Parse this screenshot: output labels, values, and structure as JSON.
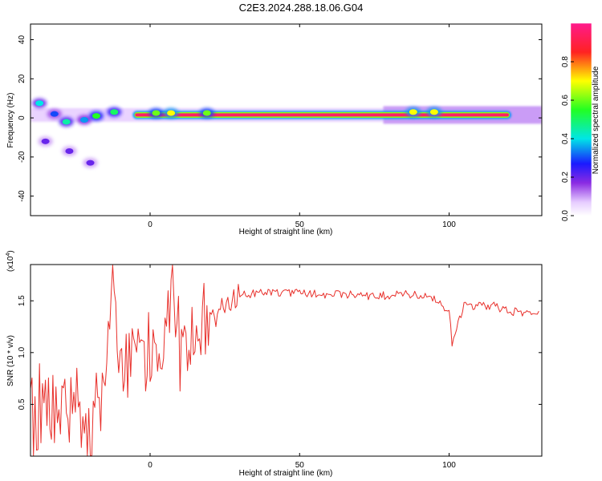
{
  "title": "C2E3.2024.288.18.06.G04",
  "colors": {
    "snr_line": "#e8302b",
    "frame": "#000000"
  },
  "chart_data": [
    {
      "type": "heatmap",
      "xlabel": "Height of straight line (km)",
      "ylabel": "Frequency (Hz)",
      "xlim": [
        -40,
        131
      ],
      "ylim": [
        -50,
        48
      ],
      "xticks": [
        0,
        50,
        100
      ],
      "yticks": [
        40,
        20,
        0,
        -20,
        -40
      ],
      "colorbar": {
        "label": "Normalized spectral amplitude",
        "range": [
          0,
          1
        ],
        "ticks": [
          0.0,
          0.2,
          0.4,
          0.6,
          0.8
        ],
        "tick_labels": [
          "0.0",
          "0.2",
          "0.4",
          "0.6",
          "0.8"
        ]
      },
      "dominant_band": {
        "frequency_hz": 1.5,
        "from_km": -5,
        "to_km": 120,
        "amplitude": 0.95
      },
      "features": [
        {
          "x": -37,
          "y": 7.5,
          "amplitude": 0.4
        },
        {
          "x": -32,
          "y": 2,
          "amplitude": 0.3
        },
        {
          "x": -28,
          "y": -2,
          "amplitude": 0.45
        },
        {
          "x": -22,
          "y": -1,
          "amplitude": 0.35
        },
        {
          "x": -18,
          "y": 1,
          "amplitude": 0.55
        },
        {
          "x": -12,
          "y": 3,
          "amplitude": 0.5
        },
        {
          "x": -35,
          "y": -12,
          "amplitude": 0.2
        },
        {
          "x": -27,
          "y": -17,
          "amplitude": 0.2
        },
        {
          "x": -20,
          "y": -23,
          "amplitude": 0.2
        },
        {
          "x": 2,
          "y": 2.5,
          "amplitude": 0.6
        },
        {
          "x": 7,
          "y": 2.5,
          "amplitude": 0.7
        },
        {
          "x": 19,
          "y": 2.5,
          "amplitude": 0.6
        },
        {
          "x": 88,
          "y": 3,
          "amplitude": 0.7
        },
        {
          "x": 95,
          "y": 3,
          "amplitude": 0.7
        }
      ]
    },
    {
      "type": "line",
      "xlabel": "Height of straight line (km)",
      "ylabel": "SNR (10 * v/v)",
      "multiplier_label": "(x10",
      "multiplier_exp": "4",
      "multiplier_close": ")",
      "xlim": [
        -40,
        131
      ],
      "ylim": [
        0,
        1.85
      ],
      "xticks": [
        0,
        50,
        100
      ],
      "yticks": [
        0.5,
        1.0,
        1.5
      ],
      "ytick_labels": [
        "0.5",
        "1.0",
        "1.5"
      ],
      "series": [
        {
          "x": [
            -40,
            -35,
            -30,
            -25,
            -20,
            -15,
            -12,
            -10,
            -5,
            0,
            5,
            7,
            10,
            15,
            20,
            25,
            30,
            35,
            40,
            45,
            50,
            55,
            60,
            65,
            70,
            75,
            80,
            85,
            90,
            95,
            100,
            101,
            105,
            110,
            115,
            120,
            125,
            130
          ],
          "y": [
            0.3,
            0.6,
            0.55,
            0.45,
            0.2,
            0.7,
            1.8,
            0.8,
            0.95,
            1.0,
            1.05,
            1.7,
            1.05,
            1.15,
            1.3,
            1.45,
            1.55,
            1.57,
            1.58,
            1.58,
            1.57,
            1.57,
            1.56,
            1.56,
            1.55,
            1.55,
            1.55,
            1.56,
            1.55,
            1.52,
            1.4,
            1.1,
            1.45,
            1.45,
            1.45,
            1.4,
            1.38,
            1.4
          ]
        }
      ]
    }
  ]
}
